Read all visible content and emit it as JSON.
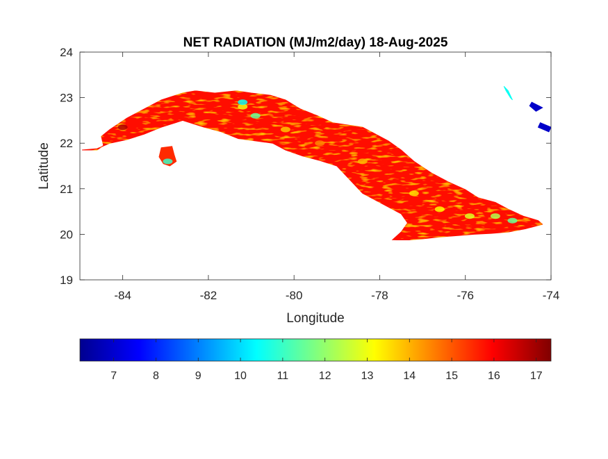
{
  "chart_data": {
    "type": "heatmap",
    "title": "NET RADIATION (MJ/m2/day) 18-Aug-2025",
    "xlabel": "Longitude",
    "ylabel": "Latitude",
    "xlim": [
      -85,
      -74
    ],
    "ylim": [
      19,
      24
    ],
    "x_ticks": [
      {
        "value": -84,
        "label": "-84"
      },
      {
        "value": -82,
        "label": "-82"
      },
      {
        "value": -80,
        "label": "-80"
      },
      {
        "value": -78,
        "label": "-78"
      },
      {
        "value": -76,
        "label": "-76"
      },
      {
        "value": -74,
        "label": "-74"
      }
    ],
    "y_ticks": [
      {
        "value": 19,
        "label": "19"
      },
      {
        "value": 20,
        "label": "20"
      },
      {
        "value": 21,
        "label": "21"
      },
      {
        "value": 22,
        "label": "22"
      },
      {
        "value": 23,
        "label": "23"
      },
      {
        "value": 24,
        "label": "24"
      }
    ],
    "colorbar": {
      "orientation": "horizontal",
      "placement": "bottom",
      "colormap": "jet",
      "range": [
        6.2,
        17.35
      ],
      "ticks": [
        {
          "value": 7,
          "label": "7"
        },
        {
          "value": 8,
          "label": "8"
        },
        {
          "value": 9,
          "label": "9"
        },
        {
          "value": 10,
          "label": "10"
        },
        {
          "value": 11,
          "label": "11"
        },
        {
          "value": 12,
          "label": "12"
        },
        {
          "value": 13,
          "label": "13"
        },
        {
          "value": 14,
          "label": "14"
        },
        {
          "value": 15,
          "label": "15"
        },
        {
          "value": 16,
          "label": "16"
        },
        {
          "value": 17,
          "label": "17"
        }
      ]
    },
    "grid": false,
    "regions": [
      {
        "name": "cuba-main-island",
        "typical_value": 15.8,
        "outline": [
          [
            -84.95,
            21.85
          ],
          [
            -84.6,
            21.85
          ],
          [
            -84.45,
            21.95
          ],
          [
            -84.5,
            22.15
          ],
          [
            -84.3,
            22.3
          ],
          [
            -83.9,
            22.55
          ],
          [
            -83.5,
            22.75
          ],
          [
            -83.1,
            22.95
          ],
          [
            -82.6,
            23.1
          ],
          [
            -82.3,
            23.15
          ],
          [
            -81.85,
            23.1
          ],
          [
            -81.35,
            23.15
          ],
          [
            -81.0,
            23.1
          ],
          [
            -80.55,
            23.05
          ],
          [
            -80.2,
            22.95
          ],
          [
            -79.85,
            22.75
          ],
          [
            -79.45,
            22.6
          ],
          [
            -79.1,
            22.45
          ],
          [
            -78.75,
            22.4
          ],
          [
            -78.4,
            22.35
          ],
          [
            -78.1,
            22.2
          ],
          [
            -77.8,
            22.05
          ],
          [
            -77.5,
            21.85
          ],
          [
            -77.2,
            21.6
          ],
          [
            -76.8,
            21.35
          ],
          [
            -76.4,
            21.15
          ],
          [
            -76.0,
            20.98
          ],
          [
            -75.7,
            20.8
          ],
          [
            -75.3,
            20.7
          ],
          [
            -75.0,
            20.55
          ],
          [
            -74.65,
            20.4
          ],
          [
            -74.3,
            20.3
          ],
          [
            -74.2,
            20.22
          ],
          [
            -74.6,
            20.12
          ],
          [
            -75.0,
            20.05
          ],
          [
            -75.4,
            20.02
          ],
          [
            -75.8,
            20.0
          ],
          [
            -76.2,
            19.97
          ],
          [
            -76.6,
            19.94
          ],
          [
            -77.0,
            19.9
          ],
          [
            -77.4,
            19.87
          ],
          [
            -77.7,
            19.88
          ],
          [
            -77.5,
            20.05
          ],
          [
            -77.35,
            20.25
          ],
          [
            -77.5,
            20.45
          ],
          [
            -77.8,
            20.6
          ],
          [
            -78.1,
            20.75
          ],
          [
            -78.4,
            20.9
          ],
          [
            -78.7,
            21.2
          ],
          [
            -79.0,
            21.5
          ],
          [
            -79.4,
            21.62
          ],
          [
            -79.8,
            21.72
          ],
          [
            -80.2,
            21.85
          ],
          [
            -80.5,
            22.0
          ],
          [
            -80.9,
            22.05
          ],
          [
            -81.3,
            22.1
          ],
          [
            -81.7,
            22.25
          ],
          [
            -82.1,
            22.35
          ],
          [
            -82.6,
            22.5
          ],
          [
            -83.1,
            22.35
          ],
          [
            -83.5,
            22.2
          ],
          [
            -83.9,
            22.08
          ],
          [
            -84.3,
            22.0
          ],
          [
            -84.6,
            21.88
          ]
        ]
      },
      {
        "name": "isla-de-la-juventud",
        "typical_value": 15.5,
        "outline": [
          [
            -83.1,
            21.9
          ],
          [
            -82.85,
            21.93
          ],
          [
            -82.8,
            21.75
          ],
          [
            -82.75,
            21.6
          ],
          [
            -82.9,
            21.5
          ],
          [
            -83.05,
            21.55
          ],
          [
            -83.15,
            21.7
          ]
        ]
      },
      {
        "name": "bahamas-islet-north",
        "typical_value": 10.5,
        "outline": [
          [
            -75.1,
            23.25
          ],
          [
            -75.0,
            23.15
          ],
          [
            -74.9,
            22.95
          ],
          [
            -74.95,
            23.0
          ],
          [
            -75.05,
            23.15
          ]
        ]
      },
      {
        "name": "bahamas-islet-east",
        "typical_value": 7.0,
        "outline": [
          [
            -74.45,
            22.9
          ],
          [
            -74.2,
            22.78
          ],
          [
            -74.35,
            22.7
          ],
          [
            -74.5,
            22.82
          ]
        ]
      },
      {
        "name": "bahamas-islet-southeast",
        "typical_value": 7.0,
        "outline": [
          [
            -74.25,
            22.45
          ],
          [
            -74.0,
            22.35
          ],
          [
            -74.05,
            22.25
          ],
          [
            -74.3,
            22.35
          ]
        ]
      }
    ],
    "hotspots": [
      {
        "lon": -81.2,
        "lat": 22.8,
        "value": 13.0
      },
      {
        "lon": -80.9,
        "lat": 22.6,
        "value": 11.5
      },
      {
        "lon": -81.2,
        "lat": 22.9,
        "value": 10.5
      },
      {
        "lon": -80.2,
        "lat": 22.3,
        "value": 13.8
      },
      {
        "lon": -79.4,
        "lat": 22.0,
        "value": 14.5
      },
      {
        "lon": -78.4,
        "lat": 21.6,
        "value": 14.0
      },
      {
        "lon": -77.2,
        "lat": 20.9,
        "value": 13.5
      },
      {
        "lon": -76.6,
        "lat": 20.55,
        "value": 13.2
      },
      {
        "lon": -75.9,
        "lat": 20.4,
        "value": 12.8
      },
      {
        "lon": -75.3,
        "lat": 20.4,
        "value": 12.3
      },
      {
        "lon": -74.9,
        "lat": 20.3,
        "value": 11.5
      },
      {
        "lon": -82.95,
        "lat": 21.6,
        "value": 11.0
      },
      {
        "lon": -84.0,
        "lat": 22.35,
        "value": 16.8
      }
    ]
  }
}
